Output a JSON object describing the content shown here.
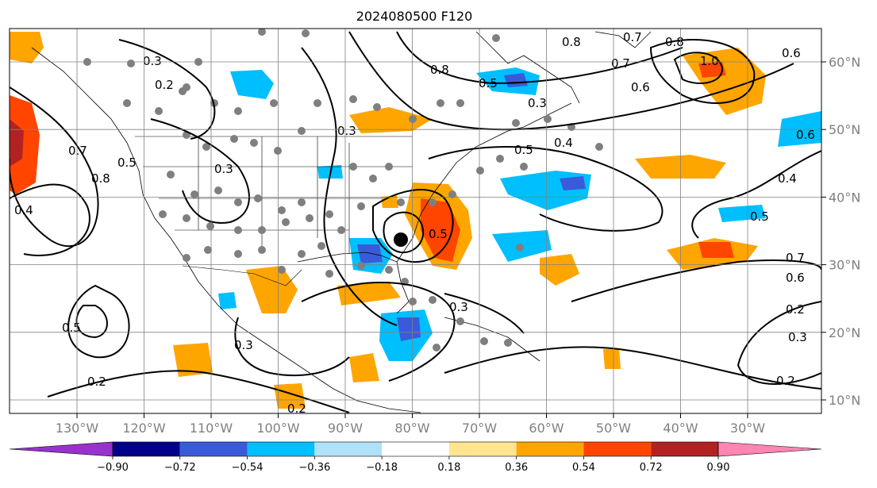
{
  "title": "2024080500 F120",
  "lon_labels": [
    "130°W",
    "120°W",
    "110°W",
    "100°W",
    "90°W",
    "80°W",
    "70°W",
    "60°W",
    "50°W",
    "40°W",
    "30°W"
  ],
  "lat_labels": [
    "60°N",
    "50°N",
    "40°N",
    "30°N",
    "20°N",
    "10°N"
  ],
  "colorbar": {
    "ticks": [
      "−0.90",
      "−0.72",
      "−0.54",
      "−0.36",
      "−0.18",
      "0.18",
      "0.36",
      "0.54",
      "0.72",
      "0.90"
    ],
    "colors": [
      "#9932cc",
      "#00008b",
      "#3a5bd9",
      "#00bfff",
      "#aee2f8",
      "#ffffff",
      "#ffe58f",
      "#ffa500",
      "#ff4500",
      "#b22222",
      "#ff85b3"
    ]
  },
  "contour_labels": [
    "0.2",
    "0.3",
    "0.4",
    "0.5",
    "0.6",
    "0.7",
    "0.8",
    "1.0"
  ],
  "map_labels": {
    "nw_a": "0.3",
    "nw_b": "0.2",
    "ne_a": "0.8",
    "ne_b": "0.7",
    "ne_c": "0.8",
    "ne_d": "1.0",
    "ne_e": "0.6",
    "ne_f": "0.7",
    "ne_g": "0.6",
    "north_a": "0.8",
    "north_b": "0.5",
    "north_c": "0.3",
    "west_a": "0.4",
    "west_b": "0.7",
    "west_c": "0.8",
    "west_d": "0.5",
    "centr_a": "0.3",
    "centr_b": "0.3",
    "ec_a": "0.5",
    "ec_b": "0.4",
    "ec_c": "0.5",
    "atl_a": "0.6",
    "atl_b": "0.4",
    "atl_c": "0.5",
    "atl_d": "0.7",
    "atl_e": "0.6",
    "atl_f": "0.2",
    "atl_g": "0.3",
    "atl_h": "0.2",
    "sw_a": "0.5",
    "sw_b": "0.2",
    "sw_c": "0.3",
    "car_a": "0.3",
    "gulf_a": "0.2"
  }
}
